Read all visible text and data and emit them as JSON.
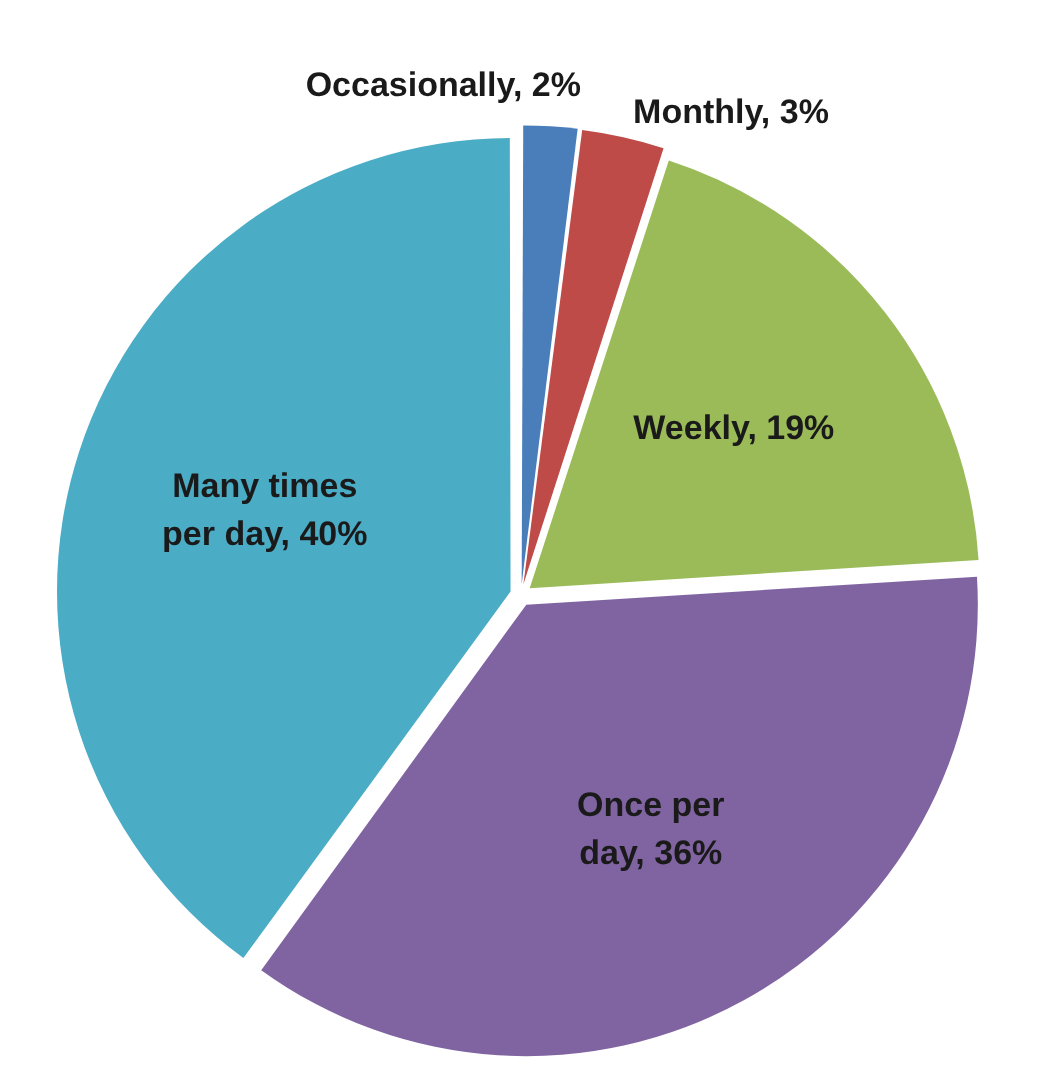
{
  "chart_data": {
    "type": "pie",
    "categories": [
      "Occasionally",
      "Monthly",
      "Weekly",
      "Once per day",
      "Many times per day"
    ],
    "values": [
      2,
      3,
      19,
      36,
      40
    ],
    "value_labels": [
      "2%",
      "3%",
      "19%",
      "36%",
      "40%"
    ],
    "colors": [
      "#4a7ebb",
      "#be4b48",
      "#9bbb59",
      "#8064a2",
      "#4bacc6"
    ],
    "legend": false
  }
}
